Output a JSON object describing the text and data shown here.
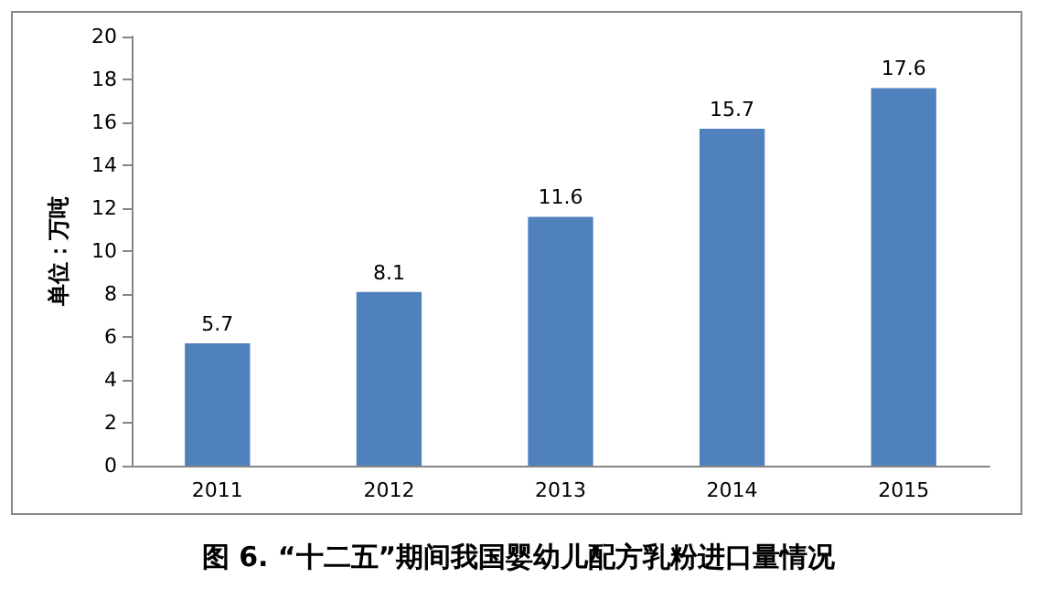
{
  "chart_data": {
    "type": "bar",
    "title": "图 6. “十二五”期间我国婴幼儿配方乳粉进口量情况",
    "ylabel": "单位：万吨",
    "categories": [
      "2011",
      "2012",
      "2013",
      "2014",
      "2015"
    ],
    "values": [
      5.7,
      8.1,
      11.6,
      15.7,
      17.6
    ],
    "color": "#4f81bd",
    "ylim": [
      0,
      20
    ],
    "yticks": [
      0,
      2,
      4,
      6,
      8,
      10,
      12,
      14,
      16,
      18,
      20
    ],
    "grid": false,
    "data_labels": true
  }
}
